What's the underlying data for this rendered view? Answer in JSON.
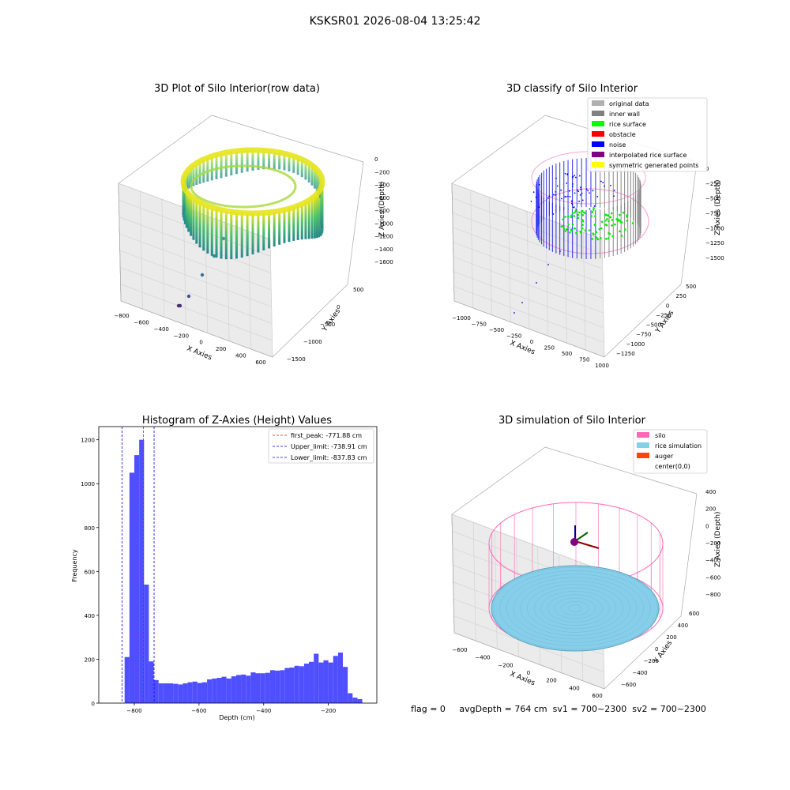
{
  "figure": {
    "suptitle": "KSKSR01 2026-08-04 13:25:42",
    "footer": "flag = 0     avgDepth = 764 cm  sv1 = 700~2300  sv2 = 700~2300",
    "colors": {
      "histogram_bar": "#4f4fff",
      "silo": "#ff69b4",
      "rice": "#87ceeb",
      "auger": "#ff4500",
      "noise": "#0000ff",
      "inner_wall": "#808080",
      "rice_surface": "#00ff00",
      "obstacle": "#ff0000",
      "interpolated": "#800080",
      "symmetric": "#ffff00"
    }
  },
  "panels": {
    "raw": {
      "title": "3D Plot of Silo Interior(row data)",
      "xlabel": "X Axies",
      "ylabel": "Y Axies",
      "zlabel": "Z Axies (Depth)",
      "xticks": [
        "−800",
        "−600",
        "−400",
        "−200",
        "0",
        "200",
        "400",
        "600"
      ],
      "yticks": [
        "500",
        "0",
        "−500",
        "−1000",
        "−1500"
      ],
      "zticks": [
        "0",
        "−200",
        "−400",
        "−600",
        "−800",
        "−1000",
        "−1200",
        "−1400",
        "−1600"
      ]
    },
    "classify": {
      "title": "3D classify of Silo Interior",
      "xlabel": "X Axies",
      "ylabel": "Y Axies",
      "zlabel": "Z Axies (Depth)",
      "xticks": [
        "−1000",
        "−750",
        "−500",
        "−250",
        "0",
        "250",
        "500",
        "750",
        "1000"
      ],
      "yticks": [
        "500",
        "250",
        "0",
        "−250",
        "−500",
        "−750",
        "−1000",
        "−1250"
      ],
      "zticks": [
        "0",
        "−250",
        "−500",
        "−750",
        "−1000",
        "−1250",
        "−1500"
      ],
      "legend": [
        {
          "label": "original data",
          "color": "#b0b0b0"
        },
        {
          "label": "inner wall",
          "color": "#808080"
        },
        {
          "label": "rice surface",
          "color": "#00ff00"
        },
        {
          "label": "obstacle",
          "color": "#ff0000"
        },
        {
          "label": "noise",
          "color": "#0000ff"
        },
        {
          "label": "interpolated rice surface",
          "color": "#800080"
        },
        {
          "label": "symmetric generated points",
          "color": "#ffff00"
        }
      ]
    },
    "simulation": {
      "title": "3D simulation of Silo Interior",
      "xlabel": "X Axies",
      "ylabel": "Y Axies",
      "zlabel": "Z Axies (Depth)",
      "xticks": [
        "−600",
        "−400",
        "−200",
        "0",
        "200",
        "400",
        "600"
      ],
      "yticks": [
        "600",
        "400",
        "200",
        "0",
        "−200",
        "−400",
        "−600"
      ],
      "zticks": [
        "400",
        "200",
        "0",
        "−200",
        "−400",
        "−600",
        "−800"
      ],
      "legend": [
        {
          "label": "silo",
          "color": "#ff69b4"
        },
        {
          "label": "rice simulation",
          "color": "#87ceeb"
        },
        {
          "label": "auger",
          "color": "#ff4500"
        },
        {
          "label": "center(0,0)",
          "color": "none"
        }
      ]
    }
  },
  "chart_data": {
    "type": "bar",
    "title": "Histogram of Z-Axies (Height) Values",
    "xlabel": "Depth (cm)",
    "ylabel": "Frequency",
    "xlim": [
      -910,
      -50
    ],
    "ylim": [
      0,
      1260
    ],
    "xticks": [
      -800,
      -600,
      -400,
      -200
    ],
    "yticks": [
      0,
      200,
      400,
      600,
      800,
      1000,
      1200
    ],
    "bin_width": 15,
    "bins": [
      {
        "start": -830,
        "count": 210
      },
      {
        "start": -815,
        "count": 1050
      },
      {
        "start": -800,
        "count": 1130
      },
      {
        "start": -785,
        "count": 1200
      },
      {
        "start": -770,
        "count": 540
      },
      {
        "start": -755,
        "count": 190
      },
      {
        "start": -740,
        "count": 105
      },
      {
        "start": -725,
        "count": 90
      },
      {
        "start": -710,
        "count": 90
      },
      {
        "start": -695,
        "count": 90
      },
      {
        "start": -680,
        "count": 88
      },
      {
        "start": -665,
        "count": 85
      },
      {
        "start": -650,
        "count": 90
      },
      {
        "start": -635,
        "count": 95
      },
      {
        "start": -620,
        "count": 98
      },
      {
        "start": -605,
        "count": 92
      },
      {
        "start": -590,
        "count": 95
      },
      {
        "start": -575,
        "count": 108
      },
      {
        "start": -560,
        "count": 112
      },
      {
        "start": -545,
        "count": 115
      },
      {
        "start": -530,
        "count": 120
      },
      {
        "start": -515,
        "count": 112
      },
      {
        "start": -500,
        "count": 122
      },
      {
        "start": -485,
        "count": 128
      },
      {
        "start": -470,
        "count": 130
      },
      {
        "start": -455,
        "count": 125
      },
      {
        "start": -440,
        "count": 140
      },
      {
        "start": -425,
        "count": 136
      },
      {
        "start": -410,
        "count": 136
      },
      {
        "start": -395,
        "count": 138
      },
      {
        "start": -380,
        "count": 150
      },
      {
        "start": -365,
        "count": 148
      },
      {
        "start": -350,
        "count": 150
      },
      {
        "start": -335,
        "count": 160
      },
      {
        "start": -320,
        "count": 162
      },
      {
        "start": -305,
        "count": 170
      },
      {
        "start": -290,
        "count": 168
      },
      {
        "start": -275,
        "count": 180
      },
      {
        "start": -260,
        "count": 188
      },
      {
        "start": -245,
        "count": 225
      },
      {
        "start": -230,
        "count": 185
      },
      {
        "start": -215,
        "count": 195
      },
      {
        "start": -200,
        "count": 185
      },
      {
        "start": -185,
        "count": 215
      },
      {
        "start": -170,
        "count": 230
      },
      {
        "start": -155,
        "count": 165
      },
      {
        "start": -140,
        "count": 45
      },
      {
        "start": -125,
        "count": 25
      },
      {
        "start": -110,
        "count": 18
      }
    ],
    "reference_lines": [
      {
        "label": "first_peak: -771.88 cm",
        "value": -771.88,
        "color": "#ff0000"
      },
      {
        "label": "Upper_limit: -738.91 cm",
        "value": -738.91,
        "color": "#0000ff"
      },
      {
        "label": "Lower_limit: -837.83 cm",
        "value": -837.83,
        "color": "#0000ff"
      }
    ],
    "legend_position": "top-right"
  }
}
